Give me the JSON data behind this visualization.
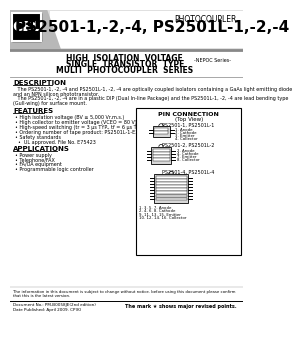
{
  "bg_color": "#ffffff",
  "title_photocoupler": "PHOTOCOUPLER",
  "title_model": "PS2501-1,-2,-4, PS2501L-1,-2,-4",
  "subtitle_line1": "HIGH  ISOLATION  VOLTAGE",
  "subtitle_line2": "SINGLE  TRANSISTOR  TYPE",
  "subtitle_line3": "MULTI  PHOTOCOUPLER  SERIES",
  "nepoc": "-NEPOC Series-",
  "cel_text": "CEL",
  "description_title": "DESCRIPTION",
  "description_lines": [
    "   The PS2501-1, -2, -4 and PS2501L-1, -2, -4 are optically coupled isolators containing a GaAs light emitting diode",
    "and an NPN silicon phototransistor.",
    "   The PS2501-1, -2, -4 are in a plastic DIP (Dual In-line Package) and the PS2501L-1, -2, -4 are lead bending type",
    "(Gull-wing) for surface mount."
  ],
  "features_title": "FEATURES",
  "features": [
    "High isolation voltage (BV ≥ 5,000 Vr.m.s.)",
    "High collector to emitter voltage (VCEO = 80 V)",
    "High-speed switching (tr = 3 μs TYP., tf = 6 μs TYP.)",
    "Ordering number of tape product: PS2501L-1-E3, E4, F3, F4, PS2501L-2-E3, E4",
    "Safety standards",
    "    UL approved. File No. E75423"
  ],
  "applications_title": "APPLICATIONS",
  "applications": [
    "Power supply",
    "Telephone/FAX",
    "FA/OA equipment",
    "Programmable logic controller"
  ],
  "pin_title": "PIN CONNECTION",
  "pin_subtitle": "(Top View)",
  "pin1_label": "PS2501-1, PS2501L-1",
  "pin2_label": "PS2501-2, PS2501L-2",
  "pin3_label": "PS2501-4, PS2501L-4",
  "pin1_notes": [
    "1. Anode",
    "2. Cathode",
    "3. Emitter",
    "4. Collector"
  ],
  "pin2_notes": [
    "2. Anode",
    "4. Cathode",
    "7. Emitter",
    "8. Collector"
  ],
  "pin4_notes": [
    "1. 3. 5. 7. Anode",
    "2. 4. 6. 8. Cathode",
    "9. 11. 13. 15. Emitter",
    "10. 12. 14. 16. Collector"
  ],
  "footer_disclaimer": "The information in this document is subject to change without notice. before using this document please confirm\nthat this is the latest version.",
  "footer_doc": "Document No.: PM-B0058JE(2nd edition)\nDate Published: April 2009. CP(K)",
  "footer_mark": "The mark ★ shows major revised points.",
  "header_bg": "#e8e8e8",
  "header_stripe_color": "#c0c0c0"
}
